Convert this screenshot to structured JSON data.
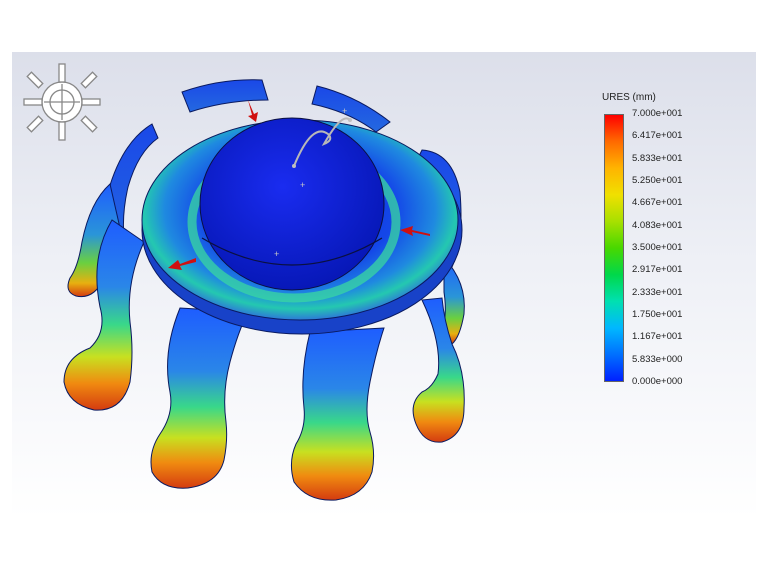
{
  "legend": {
    "title": "URES (mm)",
    "labels": [
      "7.000e+001",
      "6.417e+001",
      "5.833e+001",
      "5.250e+001",
      "4.667e+001",
      "4.083e+001",
      "3.500e+001",
      "2.917e+001",
      "2.333e+001",
      "1.750e+001",
      "1.167e+001",
      "5.833e+000",
      "0.000e+000"
    ],
    "gradient_colors": [
      "#ff0000",
      "#ff6a00",
      "#ffb400",
      "#f0e000",
      "#a8e000",
      "#48d800",
      "#00d84a",
      "#00e0b0",
      "#00b8ff",
      "#0070ff",
      "#0020ff"
    ]
  },
  "view": {
    "triad_icon": "orientation-triad-icon",
    "load_arrow_color": "#d01010"
  }
}
